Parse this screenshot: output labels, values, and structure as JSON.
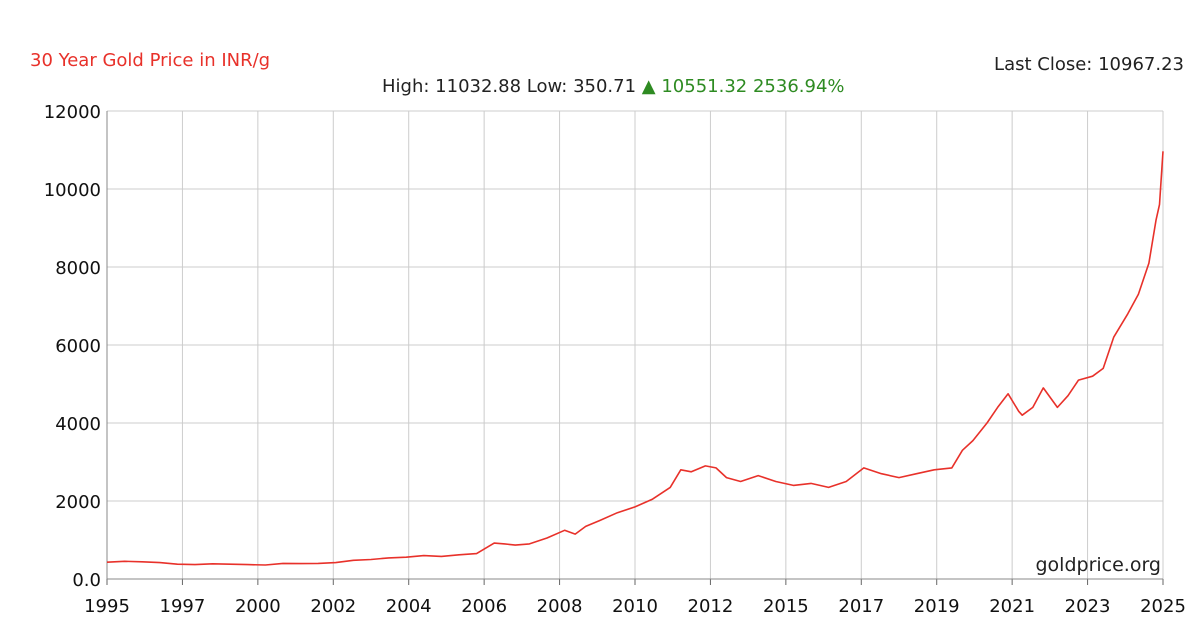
{
  "header": {
    "title": "30 Year Gold Price in INR/g",
    "last_close_label": "Last Close:",
    "last_close_value": "10967.23",
    "high_label": "High:",
    "high_value": "11032.88",
    "low_label": "Low:",
    "low_value": "350.71",
    "change_arrow": "▲",
    "change_value": "10551.32",
    "change_pct": "2536.94%"
  },
  "watermark": "goldprice.org",
  "colors": {
    "line": "#e8312a",
    "title": "#e8312a",
    "change": "#2e8b22",
    "grid": "#cccccc"
  },
  "chart_data": {
    "type": "line",
    "title": "30 Year Gold Price in INR/g",
    "xlabel": "",
    "ylabel": "",
    "xlim": [
      1995,
      2025
    ],
    "ylim": [
      0,
      12000
    ],
    "grid": true,
    "y_ticks": [
      "12000",
      "10000",
      "8000",
      "6000",
      "4000",
      "2000",
      "0.0"
    ],
    "x_ticks": [
      "1995",
      "1997",
      "2000",
      "2002",
      "2004",
      "2006",
      "2008",
      "2010",
      "2012",
      "2015",
      "2017",
      "2019",
      "2021",
      "2023",
      "2025"
    ],
    "series": [
      {
        "x": [
          1995,
          1995.5,
          1996,
          1996.5,
          1997,
          1997.5,
          1998,
          1998.5,
          1999,
          1999.5,
          2000,
          2000.5,
          2001,
          2001.5,
          2002,
          2002.5,
          2003,
          2003.5,
          2004,
          2004.5,
          2005,
          2005.5,
          2006,
          2006.3,
          2006.6,
          2007,
          2007.5,
          2008,
          2008.3,
          2008.6,
          2009,
          2009.5,
          2010,
          2010.5,
          2011,
          2011.3,
          2011.6,
          2012,
          2012.3,
          2012.6,
          2013,
          2013.5,
          2014,
          2014.5,
          2015,
          2015.5,
          2016,
          2016.5,
          2017,
          2017.5,
          2018,
          2018.5,
          2019,
          2019.3,
          2019.6,
          2020,
          2020.3,
          2020.6,
          2020.9,
          2021,
          2021.3,
          2021.6,
          2022,
          2022.3,
          2022.6,
          2023,
          2023.3,
          2023.6,
          2024,
          2024.3,
          2024.6,
          2024.8,
          2024.9,
          2025
        ],
        "y": [
          430,
          455,
          440,
          420,
          380,
          370,
          390,
          380,
          370,
          360,
          400,
          395,
          400,
          420,
          480,
          500,
          540,
          560,
          600,
          580,
          620,
          650,
          920,
          900,
          870,
          900,
          1050,
          1250,
          1150,
          1350,
          1500,
          1700,
          1850,
          2050,
          2350,
          2800,
          2750,
          2900,
          2850,
          2600,
          2500,
          2650,
          2500,
          2400,
          2450,
          2350,
          2500,
          2850,
          2700,
          2600,
          2700,
          2800,
          2850,
          3300,
          3550,
          4000,
          4400,
          4750,
          4300,
          4200,
          4400,
          4900,
          4400,
          4700,
          5100,
          5200,
          5400,
          6200,
          6800,
          7300,
          8100,
          9200,
          9600,
          10967
        ]
      }
    ]
  }
}
